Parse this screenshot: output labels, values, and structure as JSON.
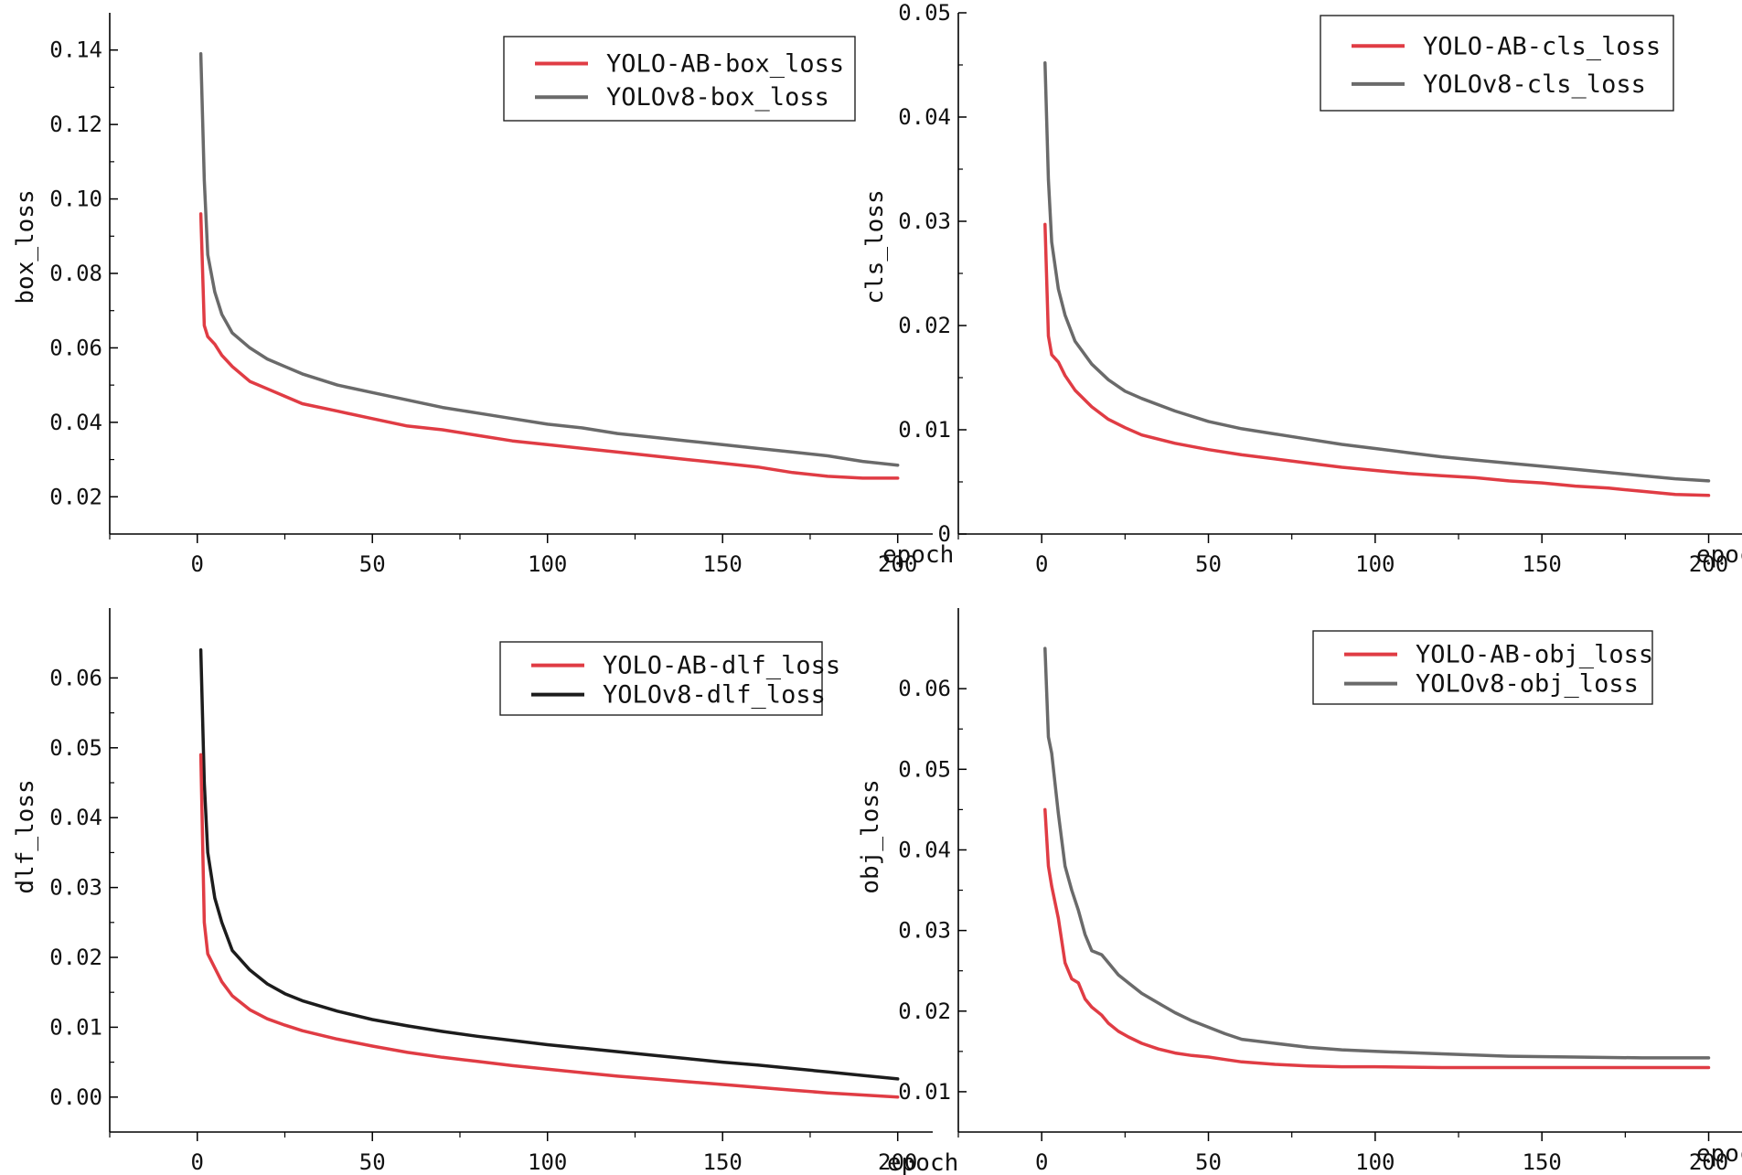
{
  "chart_data": [
    {
      "id": "box",
      "type": "line",
      "title": "",
      "xlabel": "epoch",
      "ylabel": "box_loss",
      "xlim": [
        -25,
        210
      ],
      "ylim": [
        0.01,
        0.15
      ],
      "xticks": [
        0,
        50,
        100,
        150,
        200
      ],
      "yticks": [
        0.02,
        0.04,
        0.06,
        0.08,
        0.1,
        0.12,
        0.14
      ],
      "ytick_labels": [
        "0.02",
        "0.04",
        "0.06",
        "0.08",
        "0.10",
        "0.12",
        "0.14"
      ],
      "legend_position": "top-right",
      "x": [
        1,
        2,
        3,
        5,
        7,
        10,
        15,
        20,
        25,
        30,
        40,
        50,
        60,
        70,
        80,
        90,
        100,
        110,
        120,
        130,
        140,
        150,
        160,
        170,
        180,
        190,
        200
      ],
      "series": [
        {
          "name": "YOLO-AB-box_loss",
          "color": "#e03c44",
          "values": [
            0.096,
            0.066,
            0.063,
            0.061,
            0.058,
            0.055,
            0.051,
            0.049,
            0.047,
            0.045,
            0.043,
            0.041,
            0.039,
            0.038,
            0.0365,
            0.035,
            0.034,
            0.033,
            0.032,
            0.031,
            0.03,
            0.029,
            0.028,
            0.0265,
            0.0255,
            0.025,
            0.025
          ]
        },
        {
          "name": "YOLOv8-box_loss",
          "color": "#6a6a6a",
          "values": [
            0.139,
            0.105,
            0.085,
            0.075,
            0.069,
            0.064,
            0.06,
            0.057,
            0.055,
            0.053,
            0.05,
            0.048,
            0.046,
            0.044,
            0.0425,
            0.041,
            0.0395,
            0.0385,
            0.037,
            0.036,
            0.035,
            0.034,
            0.033,
            0.032,
            0.031,
            0.0295,
            0.0285
          ]
        }
      ]
    },
    {
      "id": "cls",
      "type": "line",
      "title": "",
      "xlabel": "epoch",
      "ylabel": "cls_loss",
      "xlim": [
        -25,
        210
      ],
      "ylim": [
        0,
        0.05
      ],
      "xticks": [
        0,
        50,
        100,
        150,
        200
      ],
      "yticks": [
        0,
        0.01,
        0.02,
        0.03,
        0.04,
        0.05
      ],
      "ytick_labels": [
        "0",
        "0.01",
        "0.02",
        "0.03",
        "0.04",
        "0.05"
      ],
      "legend_position": "top-right",
      "x": [
        1,
        2,
        3,
        5,
        7,
        10,
        15,
        20,
        25,
        30,
        40,
        50,
        60,
        70,
        80,
        90,
        100,
        110,
        120,
        130,
        140,
        150,
        160,
        170,
        180,
        190,
        200
      ],
      "series": [
        {
          "name": "YOLO-AB-cls_loss",
          "color": "#e03c44",
          "values": [
            0.0297,
            0.019,
            0.0172,
            0.0165,
            0.0152,
            0.0138,
            0.0122,
            0.011,
            0.0102,
            0.0095,
            0.0087,
            0.0081,
            0.0076,
            0.0072,
            0.0068,
            0.0064,
            0.0061,
            0.0058,
            0.0056,
            0.0054,
            0.0051,
            0.0049,
            0.0046,
            0.0044,
            0.0041,
            0.0038,
            0.0037
          ]
        },
        {
          "name": "YOLOv8-cls_loss",
          "color": "#6a6a6a",
          "values": [
            0.0452,
            0.034,
            0.028,
            0.0235,
            0.021,
            0.0185,
            0.0163,
            0.0148,
            0.0137,
            0.013,
            0.0118,
            0.0108,
            0.0101,
            0.0096,
            0.0091,
            0.0086,
            0.0082,
            0.0078,
            0.0074,
            0.0071,
            0.0068,
            0.0065,
            0.0062,
            0.0059,
            0.0056,
            0.0053,
            0.0051
          ]
        }
      ]
    },
    {
      "id": "dlf",
      "type": "line",
      "title": "",
      "xlabel": "epoch",
      "ylabel": "dlf_loss",
      "xlim": [
        -25,
        210
      ],
      "ylim": [
        -0.005,
        0.07
      ],
      "xticks": [
        0,
        50,
        100,
        150,
        200
      ],
      "yticks": [
        0.0,
        0.01,
        0.02,
        0.03,
        0.04,
        0.05,
        0.06
      ],
      "ytick_labels": [
        "0.00",
        "0.01",
        "0.02",
        "0.03",
        "0.04",
        "0.05",
        "0.06"
      ],
      "legend_position": "top-right",
      "x": [
        1,
        2,
        3,
        5,
        7,
        10,
        15,
        20,
        25,
        30,
        40,
        50,
        60,
        70,
        80,
        90,
        100,
        110,
        120,
        130,
        140,
        150,
        160,
        170,
        180,
        190,
        200
      ],
      "series": [
        {
          "name": "YOLO-AB-dlf_loss",
          "color": "#e03c44",
          "values": [
            0.049,
            0.025,
            0.0205,
            0.0185,
            0.0165,
            0.0145,
            0.0125,
            0.0112,
            0.0103,
            0.0095,
            0.0083,
            0.0073,
            0.0064,
            0.0057,
            0.0051,
            0.0045,
            0.004,
            0.0035,
            0.003,
            0.0026,
            0.0022,
            0.0018,
            0.0014,
            0.001,
            0.0006,
            0.0003,
            0.0
          ]
        },
        {
          "name": "YOLOv8-dlf_loss",
          "color": "#1c1c1c",
          "values": [
            0.064,
            0.045,
            0.035,
            0.0285,
            0.025,
            0.021,
            0.0182,
            0.0162,
            0.0148,
            0.0138,
            0.0123,
            0.0111,
            0.0102,
            0.0094,
            0.0087,
            0.0081,
            0.0075,
            0.007,
            0.0065,
            0.006,
            0.0055,
            0.005,
            0.0046,
            0.0041,
            0.0036,
            0.0031,
            0.0026
          ]
        }
      ]
    },
    {
      "id": "obj",
      "type": "line",
      "title": "",
      "xlabel": "epoch",
      "ylabel": "obj_loss",
      "xlim": [
        -25,
        210
      ],
      "ylim": [
        0.005,
        0.07
      ],
      "xticks": [
        0,
        50,
        100,
        150,
        200
      ],
      "yticks": [
        0.01,
        0.02,
        0.03,
        0.04,
        0.05,
        0.06
      ],
      "ytick_labels": [
        "0.01",
        "0.02",
        "0.03",
        "0.04",
        "0.05",
        "0.06"
      ],
      "legend_position": "top-right",
      "x": [
        1,
        2,
        3,
        5,
        7,
        9,
        11,
        13,
        15,
        18,
        20,
        23,
        26,
        30,
        35,
        40,
        45,
        50,
        55,
        60,
        70,
        80,
        90,
        100,
        120,
        140,
        160,
        180,
        200
      ],
      "series": [
        {
          "name": "YOLO-AB-obj_loss",
          "color": "#e03c44",
          "values": [
            0.045,
            0.038,
            0.0355,
            0.0315,
            0.026,
            0.024,
            0.0235,
            0.0215,
            0.0205,
            0.0195,
            0.0185,
            0.0175,
            0.0168,
            0.016,
            0.0153,
            0.0148,
            0.0145,
            0.0143,
            0.014,
            0.0137,
            0.0134,
            0.0132,
            0.0131,
            0.0131,
            0.013,
            0.013,
            0.013,
            0.013,
            0.013
          ]
        },
        {
          "name": "YOLOv8-obj_loss",
          "color": "#6a6a6a",
          "values": [
            0.065,
            0.054,
            0.052,
            0.0445,
            0.038,
            0.035,
            0.0325,
            0.0295,
            0.0275,
            0.027,
            0.026,
            0.0245,
            0.0235,
            0.0222,
            0.021,
            0.0198,
            0.0188,
            0.018,
            0.0172,
            0.0165,
            0.016,
            0.0155,
            0.0152,
            0.015,
            0.0147,
            0.0144,
            0.0143,
            0.0142,
            0.0142
          ]
        }
      ]
    }
  ]
}
